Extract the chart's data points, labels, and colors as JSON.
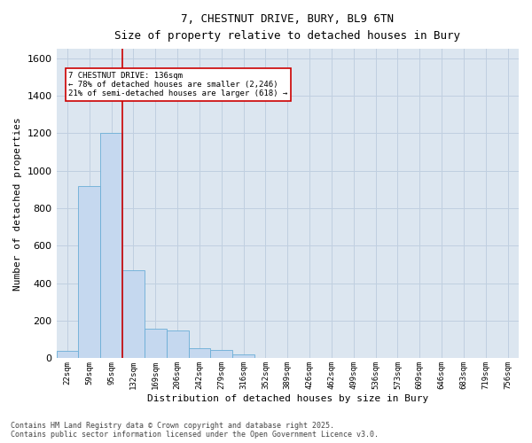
{
  "title_line1": "7, CHESTNUT DRIVE, BURY, BL9 6TN",
  "title_line2": "Size of property relative to detached houses in Bury",
  "xlabel": "Distribution of detached houses by size in Bury",
  "ylabel": "Number of detached properties",
  "categories": [
    "22sqm",
    "59sqm",
    "95sqm",
    "132sqm",
    "169sqm",
    "206sqm",
    "242sqm",
    "279sqm",
    "316sqm",
    "352sqm",
    "389sqm",
    "426sqm",
    "462sqm",
    "499sqm",
    "536sqm",
    "573sqm",
    "609sqm",
    "646sqm",
    "683sqm",
    "719sqm",
    "756sqm"
  ],
  "values": [
    40,
    920,
    1200,
    470,
    160,
    150,
    55,
    45,
    20,
    0,
    0,
    0,
    0,
    0,
    0,
    0,
    0,
    0,
    0,
    0,
    0
  ],
  "bar_color": "#c5d8ef",
  "bar_edge_color": "#6baed6",
  "grid_color": "#c0cfe0",
  "bg_color": "#dce6f0",
  "annotation_box_text": "7 CHESTNUT DRIVE: 136sqm\n← 78% of detached houses are smaller (2,246)\n21% of semi-detached houses are larger (618) →",
  "vline_x": 2.5,
  "ylim": [
    0,
    1650
  ],
  "yticks": [
    0,
    200,
    400,
    600,
    800,
    1000,
    1200,
    1400,
    1600
  ],
  "footer_line1": "Contains HM Land Registry data © Crown copyright and database right 2025.",
  "footer_line2": "Contains public sector information licensed under the Open Government Licence v3.0.",
  "annotation_box_color": "#cc0000",
  "figsize": [
    6.0,
    5.0
  ],
  "dpi": 100
}
